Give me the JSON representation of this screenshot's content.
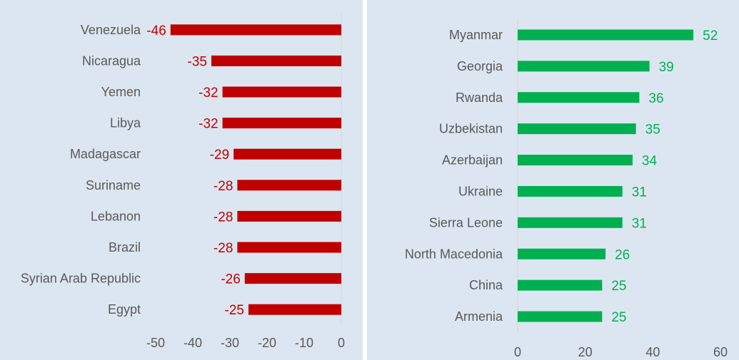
{
  "chart_data": [
    {
      "type": "bar",
      "orientation": "horizontal",
      "categories": [
        "Venezuela",
        "Nicaragua",
        "Yemen",
        "Libya",
        "Madagascar",
        "Suriname",
        "Lebanon",
        "Brazil",
        "Syrian Arab Republic",
        "Egypt"
      ],
      "values": [
        -46,
        -35,
        -32,
        -32,
        -29,
        -28,
        -28,
        -28,
        -26,
        -25
      ],
      "data_labels": [
        "-46",
        "-35",
        "-32",
        "-32",
        "-29",
        "-28",
        "-28",
        "-28",
        "-26",
        "-25"
      ],
      "xlim": [
        -50,
        0
      ],
      "ticks": [
        -50,
        -40,
        -30,
        -20,
        -10,
        0
      ],
      "tick_labels": [
        "-50",
        "-40",
        "-30",
        "-20",
        "-10",
        "0"
      ],
      "bar_color": "#c00000",
      "label_color": "#c00000",
      "grid": false,
      "legend": "none"
    },
    {
      "type": "bar",
      "orientation": "horizontal",
      "categories": [
        "Myanmar",
        "Georgia",
        "Rwanda",
        "Uzbekistan",
        "Azerbaijan",
        "Ukraine",
        "Sierra Leone",
        "North Macedonia",
        "China",
        "Armenia"
      ],
      "values": [
        52,
        39,
        36,
        35,
        34,
        31,
        31,
        26,
        25,
        25
      ],
      "data_labels": [
        "52",
        "39",
        "36",
        "35",
        "34",
        "31",
        "31",
        "26",
        "25",
        "25"
      ],
      "xlim": [
        0,
        60
      ],
      "ticks": [
        0,
        20,
        40,
        60
      ],
      "tick_labels": [
        "0",
        "20",
        "40",
        "60"
      ],
      "bar_color": "#00b050",
      "label_color": "#00b050",
      "grid": false,
      "legend": "none"
    }
  ],
  "colors": {
    "panel_background": "#dce6f1",
    "axis_line": "#d9d9d9",
    "text": "#595959"
  }
}
